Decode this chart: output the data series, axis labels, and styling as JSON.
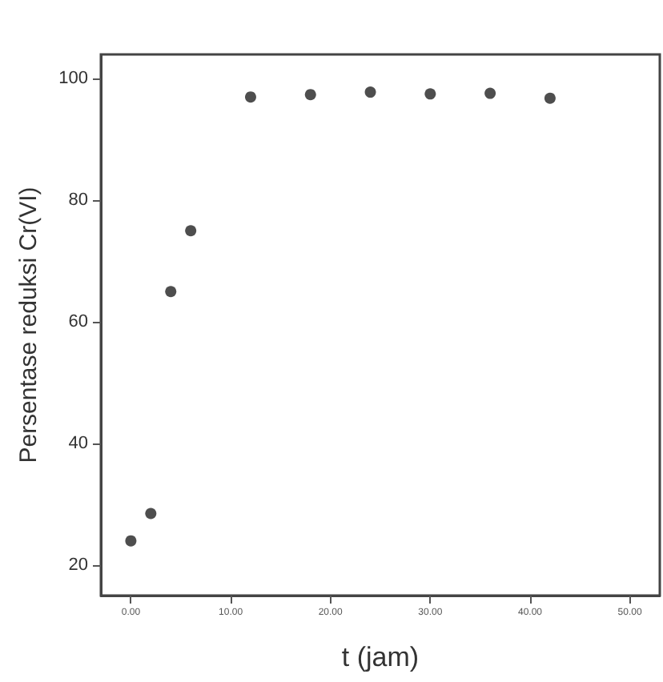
{
  "chart_data": {
    "type": "scatter",
    "xlabel": "t (jam)",
    "ylabel": "Persentase reduksi Cr(VI)",
    "x": [
      0,
      2,
      4,
      6,
      12,
      18,
      24,
      30,
      36,
      42
    ],
    "values": [
      24,
      28.5,
      65,
      75,
      97,
      97.4,
      97.8,
      97.5,
      97.6,
      96.8
    ],
    "color": "#222222",
    "marker": "circle",
    "xlim": [
      -3,
      53
    ],
    "xticks": [
      {
        "value": 0,
        "label": "0.00"
      },
      {
        "value": 10,
        "label": "10.00"
      },
      {
        "value": 20,
        "label": "20.00"
      },
      {
        "value": 30,
        "label": "30.00"
      },
      {
        "value": 40,
        "label": "40.00"
      },
      {
        "value": 50,
        "label": "50.00"
      }
    ],
    "ylim": [
      15,
      104
    ],
    "yticks": [
      20,
      40,
      60,
      80,
      100
    ],
    "grid": false
  }
}
